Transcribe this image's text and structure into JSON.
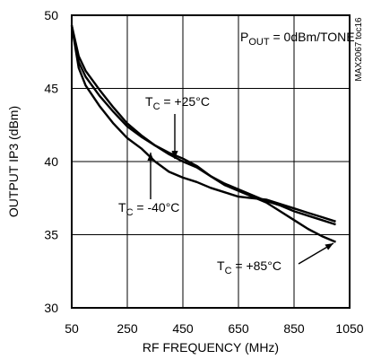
{
  "chart_data": {
    "type": "line",
    "xlabel": "RF FREQUENCY (MHz)",
    "ylabel": "OUTPUT IP3 (dBm)",
    "xlim": [
      50,
      1050
    ],
    "ylim": [
      30,
      50
    ],
    "xticks": [
      50,
      250,
      450,
      650,
      850,
      1050
    ],
    "yticks": [
      30,
      35,
      40,
      45,
      50
    ],
    "grid": true,
    "corner_tag": "MAX2067 toc16",
    "condition": {
      "main": "P",
      "sub": "OUT",
      "rest": " = 0dBm/TONE"
    },
    "colors": {
      "line": "#000000",
      "grid": "#000000",
      "background": "#ffffff"
    },
    "series": [
      {
        "label_main": "T",
        "label_sub": "C",
        "label_rest": " = +25°C",
        "x": [
          50,
          75,
          100,
          150,
          200,
          250,
          300,
          350,
          400,
          450,
          500,
          550,
          600,
          650,
          700,
          750,
          800,
          850,
          900,
          950,
          1000
        ],
        "y": [
          49.3,
          47.2,
          46.2,
          44.9,
          43.7,
          42.6,
          41.8,
          41.1,
          40.5,
          40.0,
          39.6,
          39.0,
          38.5,
          38.1,
          37.7,
          37.3,
          37.0,
          36.6,
          36.3,
          36.0,
          35.7
        ]
      },
      {
        "label_main": "T",
        "label_sub": "C",
        "label_rest": " = -40°C",
        "x": [
          50,
          75,
          100,
          150,
          200,
          250,
          300,
          350,
          400,
          450,
          500,
          550,
          600,
          650,
          700,
          750,
          800,
          850,
          900,
          950,
          1000
        ],
        "y": [
          49.3,
          46.4,
          45.2,
          43.8,
          42.6,
          41.6,
          40.9,
          40.0,
          39.3,
          38.9,
          38.6,
          38.2,
          37.9,
          37.6,
          37.5,
          37.4,
          37.1,
          36.8,
          36.5,
          36.2,
          35.9
        ]
      },
      {
        "label_main": "T",
        "label_sub": "C",
        "label_rest": " = +85°C",
        "x": [
          50,
          75,
          100,
          150,
          200,
          250,
          300,
          350,
          400,
          450,
          500,
          550,
          600,
          650,
          700,
          750,
          800,
          850,
          900,
          950,
          1000
        ],
        "y": [
          49.3,
          46.8,
          45.8,
          44.5,
          43.4,
          42.4,
          41.7,
          41.1,
          40.6,
          40.2,
          39.7,
          39.0,
          38.4,
          38.0,
          37.6,
          37.2,
          36.6,
          36.0,
          35.4,
          34.9,
          34.5
        ]
      }
    ]
  }
}
